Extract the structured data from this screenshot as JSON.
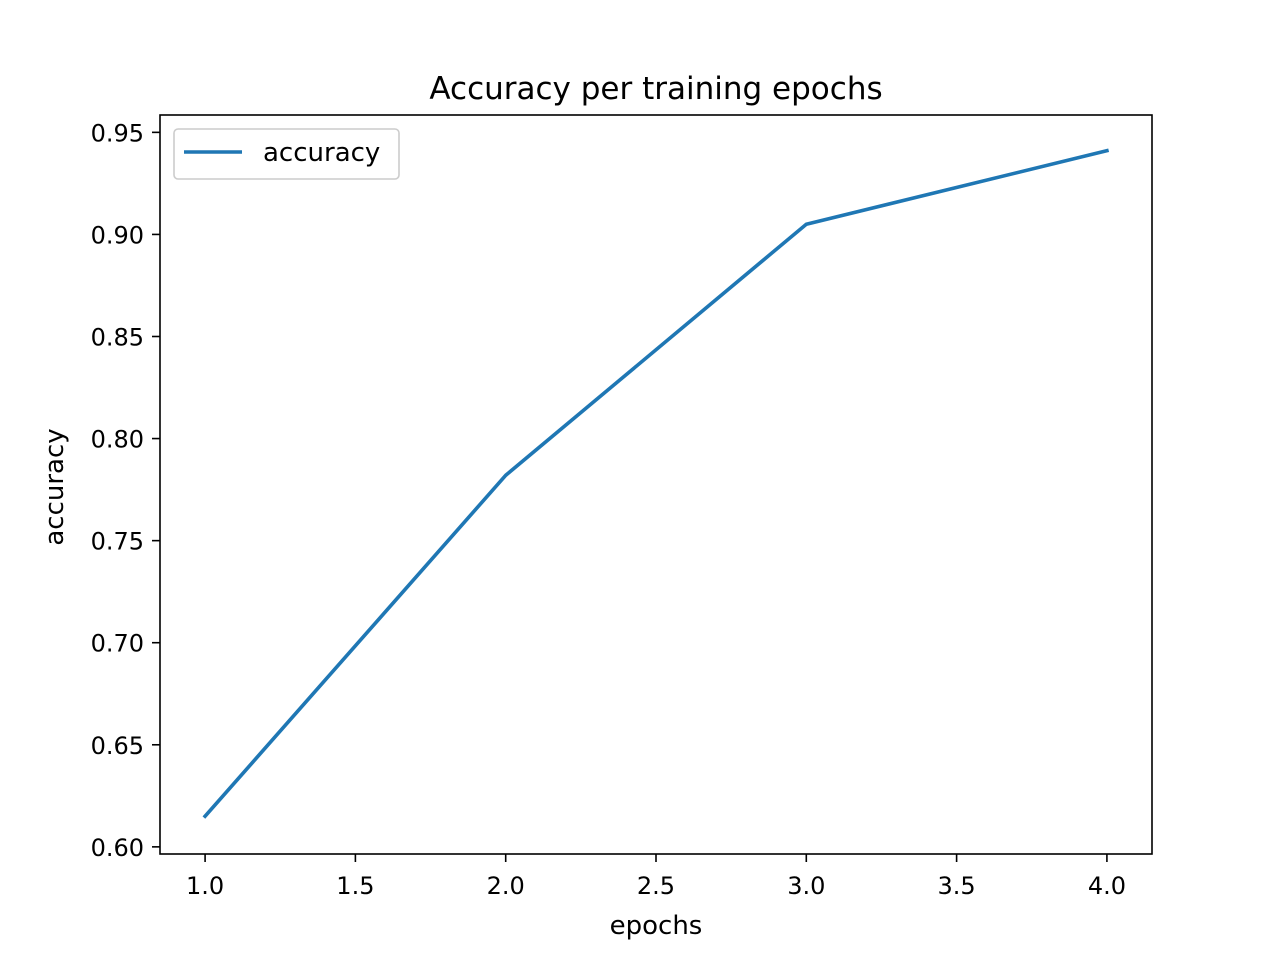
{
  "chart_data": {
    "type": "line",
    "title": "Accuracy per training epochs",
    "xlabel": "epochs",
    "ylabel": "accuracy",
    "x": [
      1.0,
      2.0,
      3.0,
      4.0
    ],
    "series": [
      {
        "name": "accuracy",
        "values": [
          0.615,
          0.782,
          0.905,
          0.941
        ],
        "color": "#1f77b4"
      }
    ],
    "xlim": [
      0.85,
      4.15
    ],
    "ylim": [
      0.5965,
      0.9585
    ],
    "xticks": [
      1.0,
      1.5,
      2.0,
      2.5,
      3.0,
      3.5,
      4.0
    ],
    "xtick_labels": [
      "1.0",
      "1.5",
      "2.0",
      "2.5",
      "3.0",
      "3.5",
      "4.0"
    ],
    "yticks": [
      0.6,
      0.65,
      0.7,
      0.75,
      0.8,
      0.85,
      0.9,
      0.95
    ],
    "ytick_labels": [
      "0.60",
      "0.65",
      "0.70",
      "0.75",
      "0.80",
      "0.85",
      "0.90",
      "0.95"
    ],
    "grid": false,
    "legend_position": "upper-left"
  }
}
